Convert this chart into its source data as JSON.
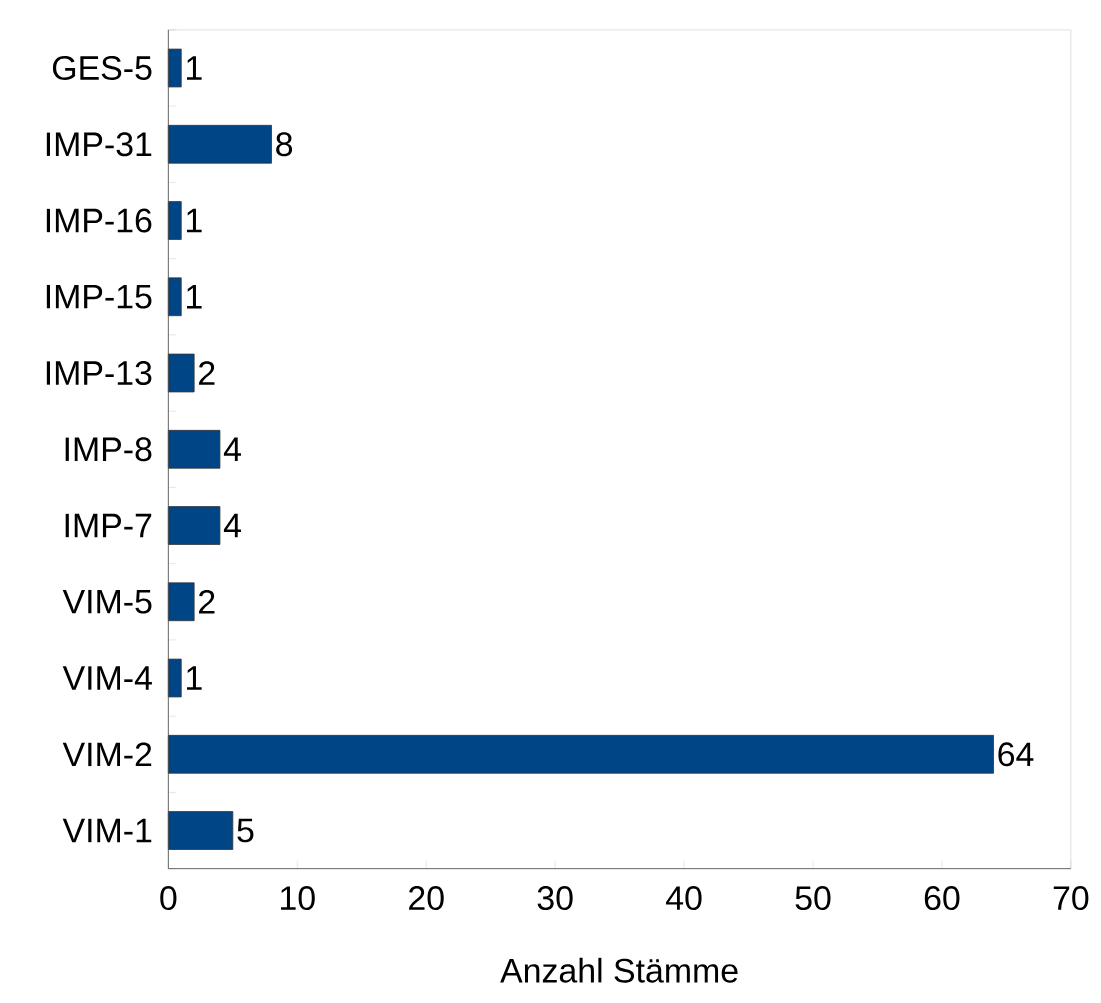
{
  "chart_data": {
    "type": "bar",
    "orientation": "horizontal",
    "xlabel": "Anzahl Stämme",
    "categories": [
      "GES-5",
      "IMP-31",
      "IMP-16",
      "IMP-15",
      "IMP-13",
      "IMP-8",
      "IMP-7",
      "VIM-5",
      "VIM-4",
      "VIM-2",
      "VIM-1"
    ],
    "values": [
      1,
      8,
      1,
      1,
      2,
      4,
      4,
      2,
      1,
      64,
      5
    ],
    "color": "#004586",
    "xlim": [
      0,
      70
    ],
    "xticks": [
      0,
      10,
      20,
      30,
      40,
      50,
      60,
      70
    ],
    "data_labels": true,
    "grid": false
  }
}
